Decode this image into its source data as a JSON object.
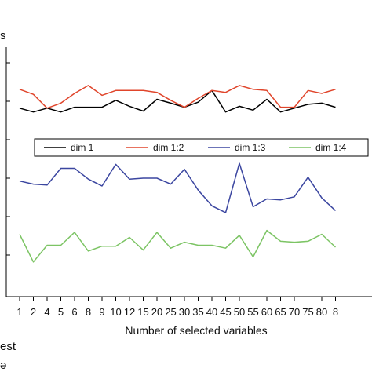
{
  "chart_data": {
    "type": "line",
    "title": "",
    "xlabel": "Number of selected variables",
    "ylabel": "",
    "categories": [
      "1",
      "2",
      "4",
      "5",
      "6",
      "8",
      "9",
      "10",
      "12",
      "15",
      "20",
      "25",
      "30",
      "35",
      "40",
      "45",
      "50",
      "55",
      "60",
      "65",
      "70",
      "75",
      "80",
      "8"
    ],
    "ylim": [
      0,
      1
    ],
    "grid": false,
    "legend_position": "center",
    "series": [
      {
        "name": "dim 1",
        "color": "#000000",
        "values": [
          0.764,
          0.744,
          0.764,
          0.744,
          0.769,
          0.769,
          0.769,
          0.805,
          0.774,
          0.749,
          0.81,
          0.79,
          0.769,
          0.795,
          0.856,
          0.744,
          0.774,
          0.754,
          0.81,
          0.744,
          0.764,
          0.784,
          0.79,
          0.769
        ]
      },
      {
        "name": "dim 1:2",
        "color": "#e0452b",
        "values": [
          0.862,
          0.836,
          0.764,
          0.79,
          0.841,
          0.882,
          0.831,
          0.856,
          0.856,
          0.856,
          0.846,
          0.805,
          0.769,
          0.815,
          0.856,
          0.846,
          0.882,
          0.862,
          0.856,
          0.769,
          0.769,
          0.856,
          0.841,
          0.862
        ]
      },
      {
        "name": "dim 1:3",
        "color": "#3b46a0",
        "values": [
          0.385,
          0.369,
          0.364,
          0.451,
          0.451,
          0.395,
          0.359,
          0.472,
          0.395,
          0.4,
          0.4,
          0.369,
          0.446,
          0.338,
          0.256,
          0.221,
          0.477,
          0.251,
          0.292,
          0.287,
          0.303,
          0.405,
          0.297,
          0.231
        ]
      },
      {
        "name": "dim 1:4",
        "color": "#7cc464",
        "values": [
          0.108,
          -0.036,
          0.051,
          0.051,
          0.118,
          0.021,
          0.046,
          0.046,
          0.092,
          0.026,
          0.118,
          0.036,
          0.067,
          0.051,
          0.051,
          0.036,
          0.103,
          -0.01,
          0.128,
          0.072,
          0.067,
          0.072,
          0.108,
          0.041
        ]
      }
    ]
  },
  "edge_text": {
    "top_left": "s",
    "bottom_left_1": "est",
    "bottom_left_2": "ə"
  }
}
